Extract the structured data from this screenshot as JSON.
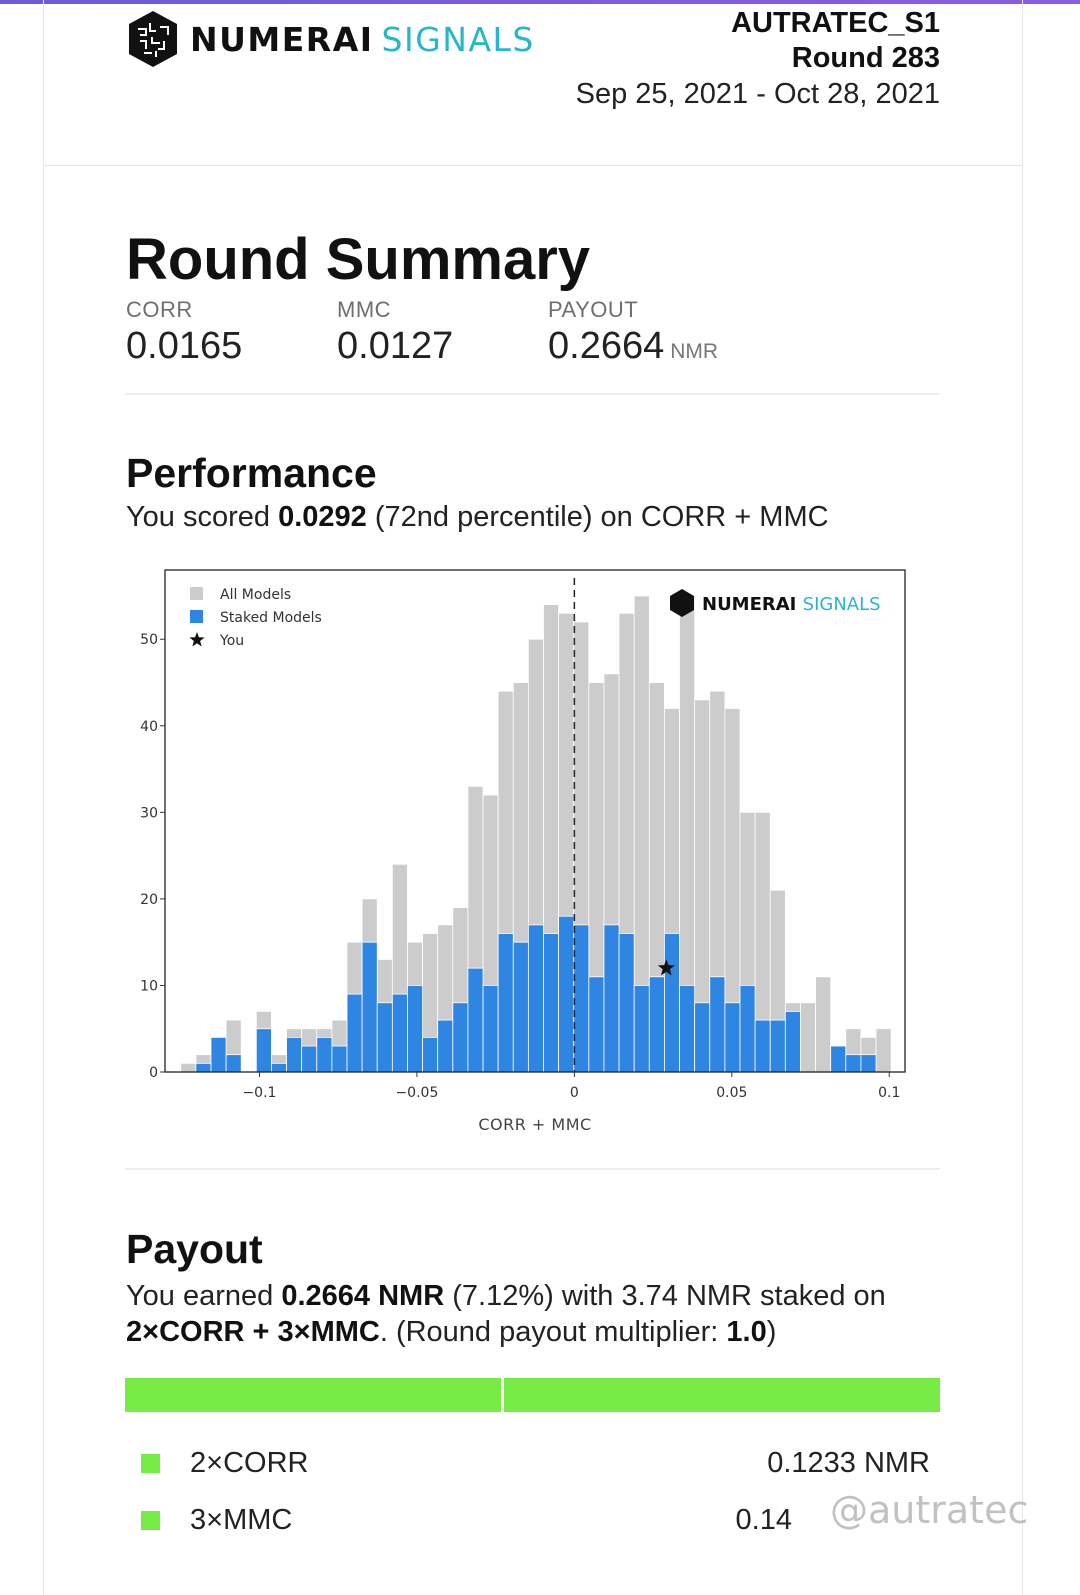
{
  "header": {
    "brand_primary": "NUMERAI",
    "brand_secondary": "SIGNALS",
    "model": "AUTRATEC_S1",
    "round": "Round 283",
    "dates": "Sep 25, 2021 - Oct 28, 2021"
  },
  "summary": {
    "title": "Round Summary",
    "metrics": [
      {
        "label": "CORR",
        "value": "0.0165",
        "unit": ""
      },
      {
        "label": "MMC",
        "value": "0.0127",
        "unit": ""
      },
      {
        "label": "PAYOUT",
        "value": "0.2664",
        "unit": "NMR"
      }
    ]
  },
  "performance": {
    "title": "Performance",
    "sentence_pre": "You scored ",
    "score": "0.0292",
    "sentence_post": " (72nd percentile) on CORR + MMC"
  },
  "chart_data": {
    "type": "bar",
    "title": "",
    "xlabel": "CORR + MMC",
    "ylabel": "",
    "xlim": [
      -0.13,
      0.105
    ],
    "ylim": [
      0,
      58
    ],
    "x_ticks": [
      -0.1,
      -0.05,
      0,
      0.05,
      0.1
    ],
    "x_tick_labels": [
      "−0.1",
      "−0.05",
      "0",
      "0.05",
      "0.1"
    ],
    "y_ticks": [
      0,
      10,
      20,
      30,
      40,
      50
    ],
    "bin_start": -0.125,
    "bin_width": 0.0048,
    "legend": [
      "All Models",
      "Staked Models",
      "You"
    ],
    "legend_placement": "top-left",
    "watermark_logo": {
      "primary": "NUMERAI",
      "secondary": "SIGNALS"
    },
    "zero_line": true,
    "series": [
      {
        "name": "All Models",
        "color": "#cccccc",
        "values": [
          1,
          2,
          4,
          6,
          0,
          7,
          2,
          5,
          5,
          5,
          6,
          15,
          20,
          13,
          24,
          15,
          16,
          17,
          19,
          33,
          32,
          44,
          45,
          50,
          54,
          53,
          52,
          45,
          46,
          53,
          55,
          45,
          42,
          55,
          43,
          44,
          42,
          30,
          30,
          21,
          8,
          8,
          11,
          1,
          5,
          4,
          5
        ]
      },
      {
        "name": "Staked Models",
        "color": "#2f86e2",
        "values": [
          0,
          1,
          4,
          2,
          0,
          5,
          1,
          4,
          3,
          4,
          3,
          9,
          15,
          8,
          9,
          10,
          4,
          6,
          8,
          12,
          10,
          16,
          15,
          17,
          16,
          18,
          17,
          11,
          17,
          16,
          10,
          11,
          16,
          10,
          8,
          11,
          8,
          10,
          6,
          6,
          7,
          0,
          0,
          3,
          2,
          2,
          0
        ]
      },
      {
        "name": "You",
        "x": 0.0292,
        "y": 12
      }
    ]
  },
  "payout": {
    "title": "Payout",
    "line1_pre": "You earned ",
    "earned": "0.2664 NMR",
    "line1_post": " (7.12%) with 3.74 NMR staked on",
    "formula": "2×CORR + 3×MMC",
    "line2_mid": ". (Round payout multiplier: ",
    "multiplier": "1.0",
    "line2_end": ")",
    "bar_fraction_corr": 0.463,
    "bar_color": "#77ec47",
    "rows": [
      {
        "name": "2×CORR",
        "amount": "0.1233 NMR"
      },
      {
        "name": "3×MMC",
        "amount": "0.14"
      }
    ]
  },
  "watermark": "@autratec"
}
